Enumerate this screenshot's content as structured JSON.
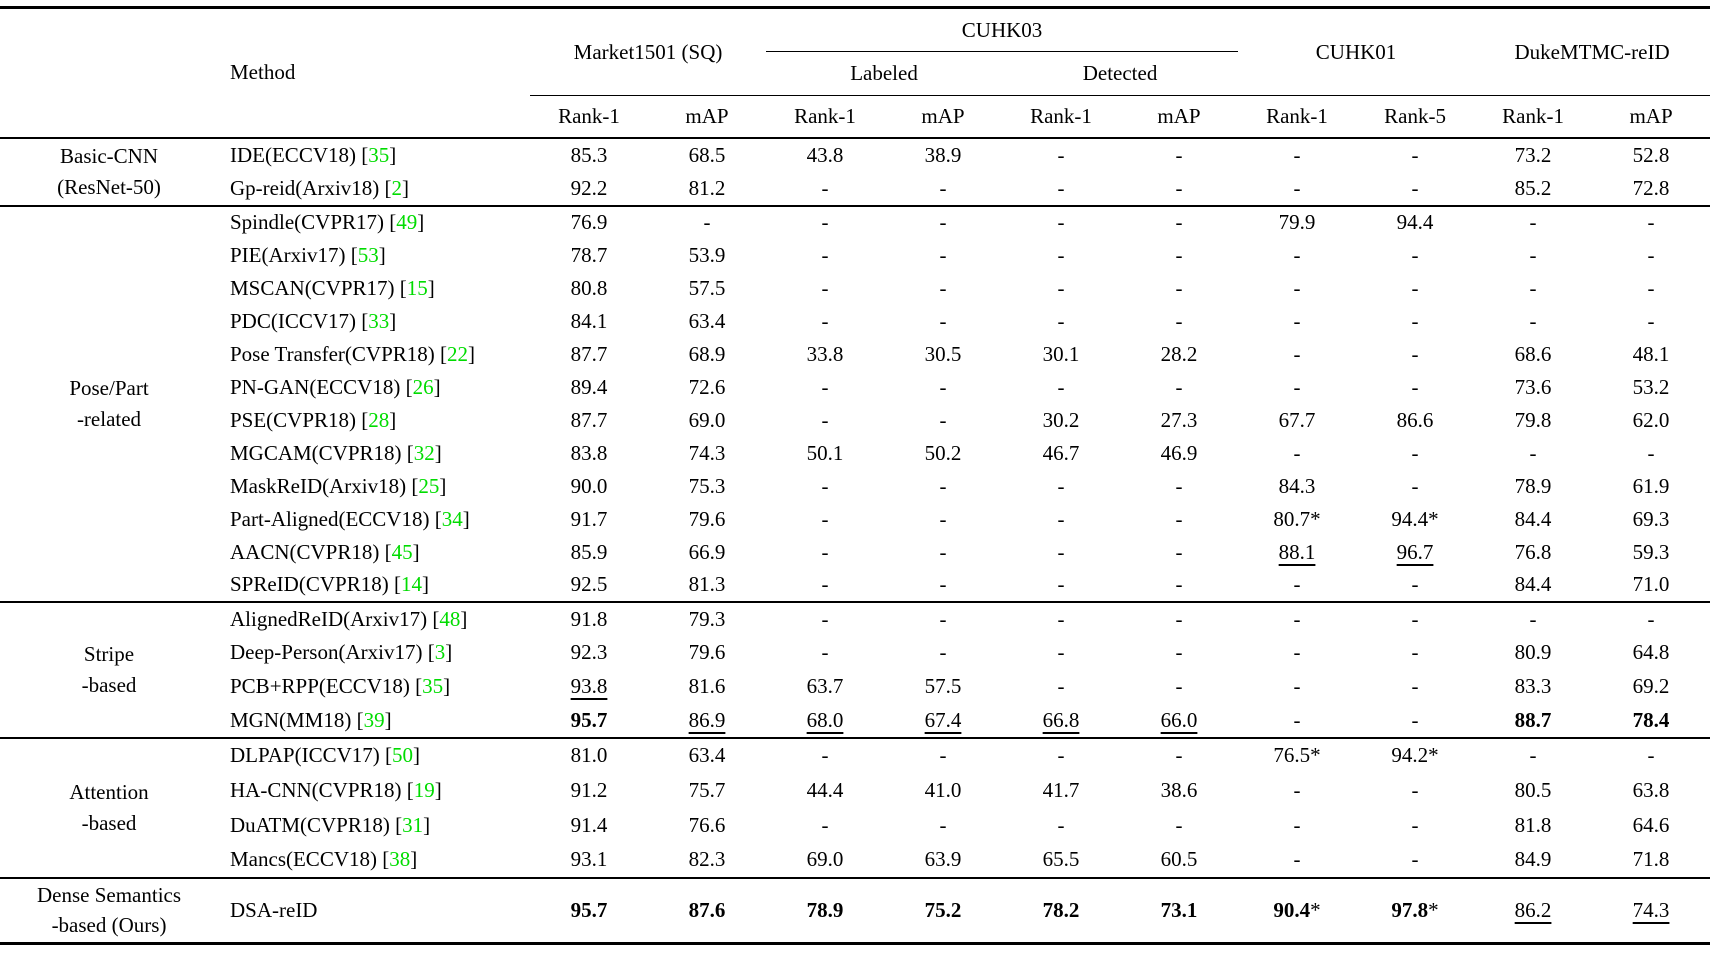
{
  "colors": {
    "citation_green": "#00DC00"
  },
  "table": {
    "header": {
      "method": "Method",
      "market": "Market1501 (SQ)",
      "cuhk03": "CUHK03",
      "labeled": "Labeled",
      "detected": "Detected",
      "cuhk01": "CUHK01",
      "duke": "DukeMTMC-reID",
      "sub": [
        "Rank-1",
        "mAP",
        "Rank-1",
        "mAP",
        "Rank-1",
        "mAP",
        "Rank-1",
        "Rank-5",
        "Rank-1",
        "mAP"
      ]
    },
    "groups": [
      {
        "label_lines": [
          "Basic-CNN",
          "(ResNet-50)"
        ],
        "rows": [
          {
            "method": "IDE(ECCV18)",
            "ref": "35",
            "cells": [
              "85.3",
              "68.5",
              "43.8",
              "38.9",
              "-",
              "-",
              "-",
              "-",
              "73.2",
              "52.8"
            ]
          },
          {
            "method": "Gp-reid(Arxiv18)",
            "ref": "2",
            "cells": [
              "92.2",
              "81.2",
              "-",
              "-",
              "-",
              "-",
              "-",
              "-",
              "85.2",
              "72.8"
            ]
          }
        ]
      },
      {
        "label_lines": [
          "Pose/Part",
          "-related"
        ],
        "rows": [
          {
            "method": "Spindle(CVPR17)",
            "ref": "49",
            "cells": [
              "76.9",
              "-",
              "-",
              "-",
              "-",
              "-",
              "79.9",
              "94.4",
              "-",
              "-"
            ]
          },
          {
            "method": "PIE(Arxiv17)",
            "ref": "53",
            "cells": [
              "78.7",
              "53.9",
              "-",
              "-",
              "-",
              "-",
              "-",
              "-",
              "-",
              "-"
            ]
          },
          {
            "method": "MSCAN(CVPR17)",
            "ref": "15",
            "cells": [
              "80.8",
              "57.5",
              "-",
              "-",
              "-",
              "-",
              "-",
              "-",
              "-",
              "-"
            ]
          },
          {
            "method": "PDC(ICCV17)",
            "ref": "33",
            "cells": [
              "84.1",
              "63.4",
              "-",
              "-",
              "-",
              "-",
              "-",
              "-",
              "-",
              "-"
            ]
          },
          {
            "method": "Pose Transfer(CVPR18)",
            "ref": "22",
            "cells": [
              "87.7",
              "68.9",
              "33.8",
              "30.5",
              "30.1",
              "28.2",
              "-",
              "-",
              "68.6",
              "48.1"
            ]
          },
          {
            "method": "PN-GAN(ECCV18)",
            "ref": "26",
            "cells": [
              "89.4",
              "72.6",
              "-",
              "-",
              "-",
              "-",
              "-",
              "-",
              "73.6",
              "53.2"
            ]
          },
          {
            "method": "PSE(CVPR18)",
            "ref": "28",
            "cells": [
              "87.7",
              "69.0",
              "-",
              "-",
              "30.2",
              "27.3",
              "67.7",
              "86.6",
              "79.8",
              "62.0"
            ]
          },
          {
            "method": "MGCAM(CVPR18)",
            "ref": "32",
            "cells": [
              "83.8",
              "74.3",
              "50.1",
              "50.2",
              "46.7",
              "46.9",
              "-",
              "-",
              "-",
              "-"
            ]
          },
          {
            "method": "MaskReID(Arxiv18)",
            "ref": "25",
            "cells": [
              "90.0",
              "75.3",
              "-",
              "-",
              "-",
              "-",
              "84.3",
              "-",
              "78.9",
              "61.9"
            ]
          },
          {
            "method": "Part-Aligned(ECCV18)",
            "ref": "34",
            "cells": [
              "91.7",
              "79.6",
              "-",
              "-",
              "-",
              "-",
              {
                "v": "80.7",
                "s": 1
              },
              {
                "v": "94.4",
                "s": 1
              },
              "84.4",
              "69.3"
            ]
          },
          {
            "method": "AACN(CVPR18)",
            "ref": "45",
            "cells": [
              "85.9",
              "66.9",
              "-",
              "-",
              "-",
              "-",
              {
                "v": "88.1",
                "u": 1
              },
              {
                "v": "96.7",
                "u": 1
              },
              "76.8",
              "59.3"
            ]
          },
          {
            "method": "SPReID(CVPR18)",
            "ref": "14",
            "cells": [
              "92.5",
              "81.3",
              "-",
              "-",
              "-",
              "-",
              "-",
              "-",
              "84.4",
              "71.0"
            ]
          }
        ]
      },
      {
        "label_lines": [
          "Stripe",
          "-based"
        ],
        "rows": [
          {
            "method": "AlignedReID(Arxiv17)",
            "ref": "48",
            "cells": [
              "91.8",
              "79.3",
              "-",
              "-",
              "-",
              "-",
              "-",
              "-",
              "-",
              "-"
            ]
          },
          {
            "method": "Deep-Person(Arxiv17)",
            "ref": "3",
            "cells": [
              "92.3",
              "79.6",
              "-",
              "-",
              "-",
              "-",
              "-",
              "-",
              "80.9",
              "64.8"
            ]
          },
          {
            "method": "PCB+RPP(ECCV18)",
            "ref": "35",
            "cells": [
              {
                "v": "93.8",
                "u": 1
              },
              "81.6",
              "63.7",
              "57.5",
              "-",
              "-",
              "-",
              "-",
              "83.3",
              "69.2"
            ]
          },
          {
            "method": "MGN(MM18)",
            "ref": "39",
            "cells": [
              {
                "v": "95.7",
                "b": 1
              },
              {
                "v": "86.9",
                "u": 1
              },
              {
                "v": "68.0",
                "u": 1
              },
              {
                "v": "67.4",
                "u": 1
              },
              {
                "v": "66.8",
                "u": 1
              },
              {
                "v": "66.0",
                "u": 1
              },
              "-",
              "-",
              {
                "v": "88.7",
                "b": 1
              },
              {
                "v": "78.4",
                "b": 1
              }
            ]
          }
        ]
      },
      {
        "label_lines": [
          "Attention",
          "-based"
        ],
        "rows": [
          {
            "method": "DLPAP(ICCV17)",
            "ref": "50",
            "cells": [
              "81.0",
              "63.4",
              "-",
              "-",
              "-",
              "-",
              {
                "v": "76.5",
                "s": 1
              },
              {
                "v": "94.2",
                "s": 1
              },
              "-",
              "-"
            ]
          },
          {
            "method": "HA-CNN(CVPR18)",
            "ref": "19",
            "cells": [
              "91.2",
              "75.7",
              "44.4",
              "41.0",
              "41.7",
              "38.6",
              "-",
              "-",
              "80.5",
              "63.8"
            ]
          },
          {
            "method": "DuATM(CVPR18)",
            "ref": "31",
            "cells": [
              "91.4",
              "76.6",
              "-",
              "-",
              "-",
              "-",
              "-",
              "-",
              "81.8",
              "64.6"
            ]
          },
          {
            "method": "Mancs(ECCV18)",
            "ref": "38",
            "cells": [
              "93.1",
              "82.3",
              "69.0",
              "63.9",
              "65.5",
              "60.5",
              "-",
              "-",
              "84.9",
              "71.8"
            ]
          }
        ]
      },
      {
        "label_lines": [
          "Dense Semantics",
          "-based (Ours)"
        ],
        "rows": [
          {
            "method": "DSA-reID",
            "ref": null,
            "cells": [
              {
                "v": "95.7",
                "b": 1
              },
              {
                "v": "87.6",
                "b": 1
              },
              {
                "v": "78.9",
                "b": 1
              },
              {
                "v": "75.2",
                "b": 1
              },
              {
                "v": "78.2",
                "b": 1
              },
              {
                "v": "73.1",
                "b": 1
              },
              {
                "v": "90.4",
                "b": 1,
                "s": 1
              },
              {
                "v": "97.8",
                "b": 1,
                "s": 1
              },
              {
                "v": "86.2",
                "u": 1
              },
              {
                "v": "74.3",
                "u": 1
              }
            ]
          }
        ]
      }
    ]
  }
}
